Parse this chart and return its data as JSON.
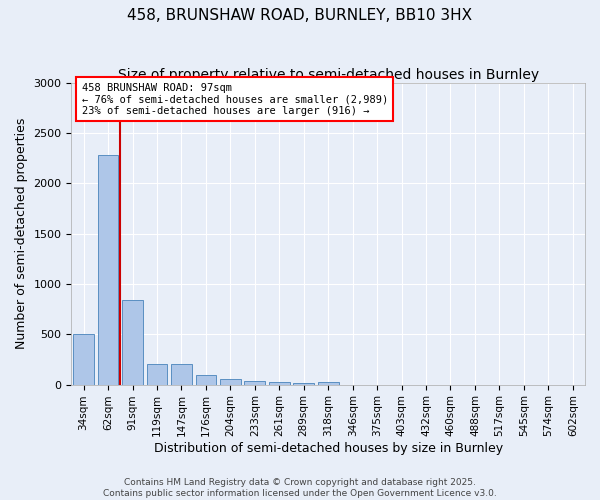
{
  "title": "458, BRUNSHAW ROAD, BURNLEY, BB10 3HX",
  "subtitle": "Size of property relative to semi-detached houses in Burnley",
  "xlabel": "Distribution of semi-detached houses by size in Burnley",
  "ylabel": "Number of semi-detached properties",
  "footer_line1": "Contains HM Land Registry data © Crown copyright and database right 2025.",
  "footer_line2": "Contains public sector information licensed under the Open Government Licence v3.0.",
  "bins": [
    "34sqm",
    "62sqm",
    "91sqm",
    "119sqm",
    "147sqm",
    "176sqm",
    "204sqm",
    "233sqm",
    "261sqm",
    "289sqm",
    "318sqm",
    "346sqm",
    "375sqm",
    "403sqm",
    "432sqm",
    "460sqm",
    "488sqm",
    "517sqm",
    "545sqm",
    "574sqm",
    "602sqm"
  ],
  "values": [
    500,
    2280,
    840,
    205,
    205,
    100,
    60,
    40,
    25,
    15,
    30,
    0,
    0,
    0,
    0,
    0,
    0,
    0,
    0,
    0
  ],
  "bar_color": "#aec6e8",
  "bar_edge_color": "#5a8fc2",
  "annotation_text_line1": "458 BRUNSHAW ROAD: 97sqm",
  "annotation_text_line2": "← 76% of semi-detached houses are smaller (2,989)",
  "annotation_text_line3": "23% of semi-detached houses are larger (916) →",
  "annotation_box_color": "white",
  "annotation_box_edge_color": "red",
  "red_line_color": "#cc0000",
  "red_line_x": 1.5,
  "ylim": [
    0,
    3000
  ],
  "yticks": [
    0,
    500,
    1000,
    1500,
    2000,
    2500,
    3000
  ],
  "background_color": "#e8eef8",
  "grid_color": "white",
  "title_fontsize": 11,
  "subtitle_fontsize": 10,
  "axis_label_fontsize": 9,
  "tick_fontsize": 7.5,
  "annotation_fontsize": 7.5,
  "footer_fontsize": 6.5
}
